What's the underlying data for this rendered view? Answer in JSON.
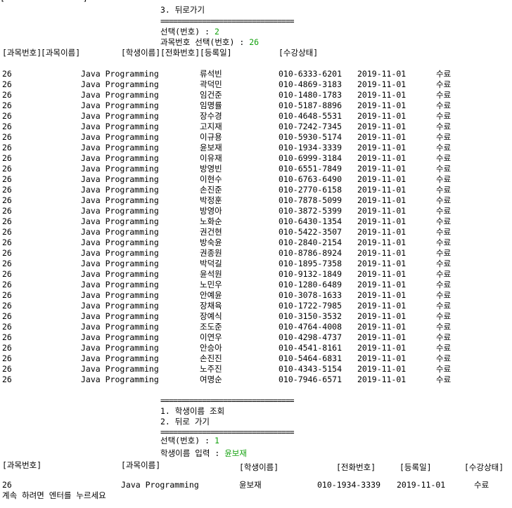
{
  "top_cut_line": "[                ] ",
  "menu1": {
    "item3": "3. 뒤로가기",
    "separator": "================================",
    "prompt_label": "선택(번호) : ",
    "prompt_value": "2",
    "course_prompt_label": "과목번호 선택(번호) : ",
    "course_prompt_value": "26"
  },
  "table1": {
    "headers": [
      "[과목번호]",
      "[과목이름]",
      "[학생이름]",
      "[전화번호]",
      "[등록일]",
      "[수강상태]"
    ],
    "rows": [
      [
        "26",
        "Java Programming",
        "류석빈",
        "010-6333-6201",
        "2019-11-01",
        "수료"
      ],
      [
        "26",
        "Java Programming",
        "곽덕민",
        "010-4869-3183",
        "2019-11-01",
        "수료"
      ],
      [
        "26",
        "Java Programming",
        "임건준",
        "010-1480-1783",
        "2019-11-01",
        "수료"
      ],
      [
        "26",
        "Java Programming",
        "임명률",
        "010-5187-8896",
        "2019-11-01",
        "수료"
      ],
      [
        "26",
        "Java Programming",
        "장수경",
        "010-4648-5531",
        "2019-11-01",
        "수료"
      ],
      [
        "26",
        "Java Programming",
        "고지재",
        "010-7242-7345",
        "2019-11-01",
        "수료"
      ],
      [
        "26",
        "Java Programming",
        "이규용",
        "010-5930-5174",
        "2019-11-01",
        "수료"
      ],
      [
        "26",
        "Java Programming",
        "윤보재",
        "010-1934-3339",
        "2019-11-01",
        "수료"
      ],
      [
        "26",
        "Java Programming",
        "이유재",
        "010-6999-3184",
        "2019-11-01",
        "수료"
      ],
      [
        "26",
        "Java Programming",
        "방영빈",
        "010-6551-7849",
        "2019-11-01",
        "수료"
      ],
      [
        "26",
        "Java Programming",
        "이현수",
        "010-6763-6490",
        "2019-11-01",
        "수료"
      ],
      [
        "26",
        "Java Programming",
        "손진준",
        "010-2770-6158",
        "2019-11-01",
        "수료"
      ],
      [
        "26",
        "Java Programming",
        "박정훈",
        "010-7878-5099",
        "2019-11-01",
        "수료"
      ],
      [
        "26",
        "Java Programming",
        "방영아",
        "010-3872-5399",
        "2019-11-01",
        "수료"
      ],
      [
        "26",
        "Java Programming",
        "노화순",
        "010-6430-1354",
        "2019-11-01",
        "수료"
      ],
      [
        "26",
        "Java Programming",
        "권건현",
        "010-5422-3507",
        "2019-11-01",
        "수료"
      ],
      [
        "26",
        "Java Programming",
        "방숙윤",
        "010-2840-2154",
        "2019-11-01",
        "수료"
      ],
      [
        "26",
        "Java Programming",
        "권종원",
        "010-8786-8924",
        "2019-11-01",
        "수료"
      ],
      [
        "26",
        "Java Programming",
        "박덕길",
        "010-1895-7358",
        "2019-11-01",
        "수료"
      ],
      [
        "26",
        "Java Programming",
        "윤석원",
        "010-9132-1849",
        "2019-11-01",
        "수료"
      ],
      [
        "26",
        "Java Programming",
        "노민우",
        "010-1280-6489",
        "2019-11-01",
        "수료"
      ],
      [
        "26",
        "Java Programming",
        "안예윤",
        "010-3078-1633",
        "2019-11-01",
        "수료"
      ],
      [
        "26",
        "Java Programming",
        "장채육",
        "010-1722-7985",
        "2019-11-01",
        "수료"
      ],
      [
        "26",
        "Java Programming",
        "장예식",
        "010-3150-3532",
        "2019-11-01",
        "수료"
      ],
      [
        "26",
        "Java Programming",
        "조도준",
        "010-4764-4008",
        "2019-11-01",
        "수료"
      ],
      [
        "26",
        "Java Programming",
        "이연우",
        "010-4298-4737",
        "2019-11-01",
        "수료"
      ],
      [
        "26",
        "Java Programming",
        "안승아",
        "010-4541-8161",
        "2019-11-01",
        "수료"
      ],
      [
        "26",
        "Java Programming",
        "손진진",
        "010-5464-6831",
        "2019-11-01",
        "수료"
      ],
      [
        "26",
        "Java Programming",
        "노주진",
        "010-4343-5154",
        "2019-11-01",
        "수료"
      ],
      [
        "26",
        "Java Programming",
        "여명순",
        "010-7946-6571",
        "2019-11-01",
        "수료"
      ]
    ]
  },
  "menu2": {
    "separator": "================================",
    "item1": "1. 학생이름 조회",
    "item2": "2. 뒤로 가기",
    "separator2": "================================",
    "prompt_label": "선택(번호) : ",
    "prompt_value": "1",
    "name_prompt_label": "학생이름 입력 : ",
    "name_prompt_value": "윤보재"
  },
  "table2": {
    "headers": [
      "[과목번호]",
      "[과목이름]",
      "[학생이름]",
      "[전화번호]",
      "[등록일]",
      "[수강상태]"
    ],
    "row": [
      "26",
      "Java Programming",
      "윤보재",
      "010-1934-3339",
      "2019-11-01",
      "수료"
    ]
  },
  "footer": "계속 하려면 엔터를 누르세요",
  "colors": {
    "background": "#ffffff",
    "text": "#000000",
    "input_highlight": "#13a10e"
  }
}
